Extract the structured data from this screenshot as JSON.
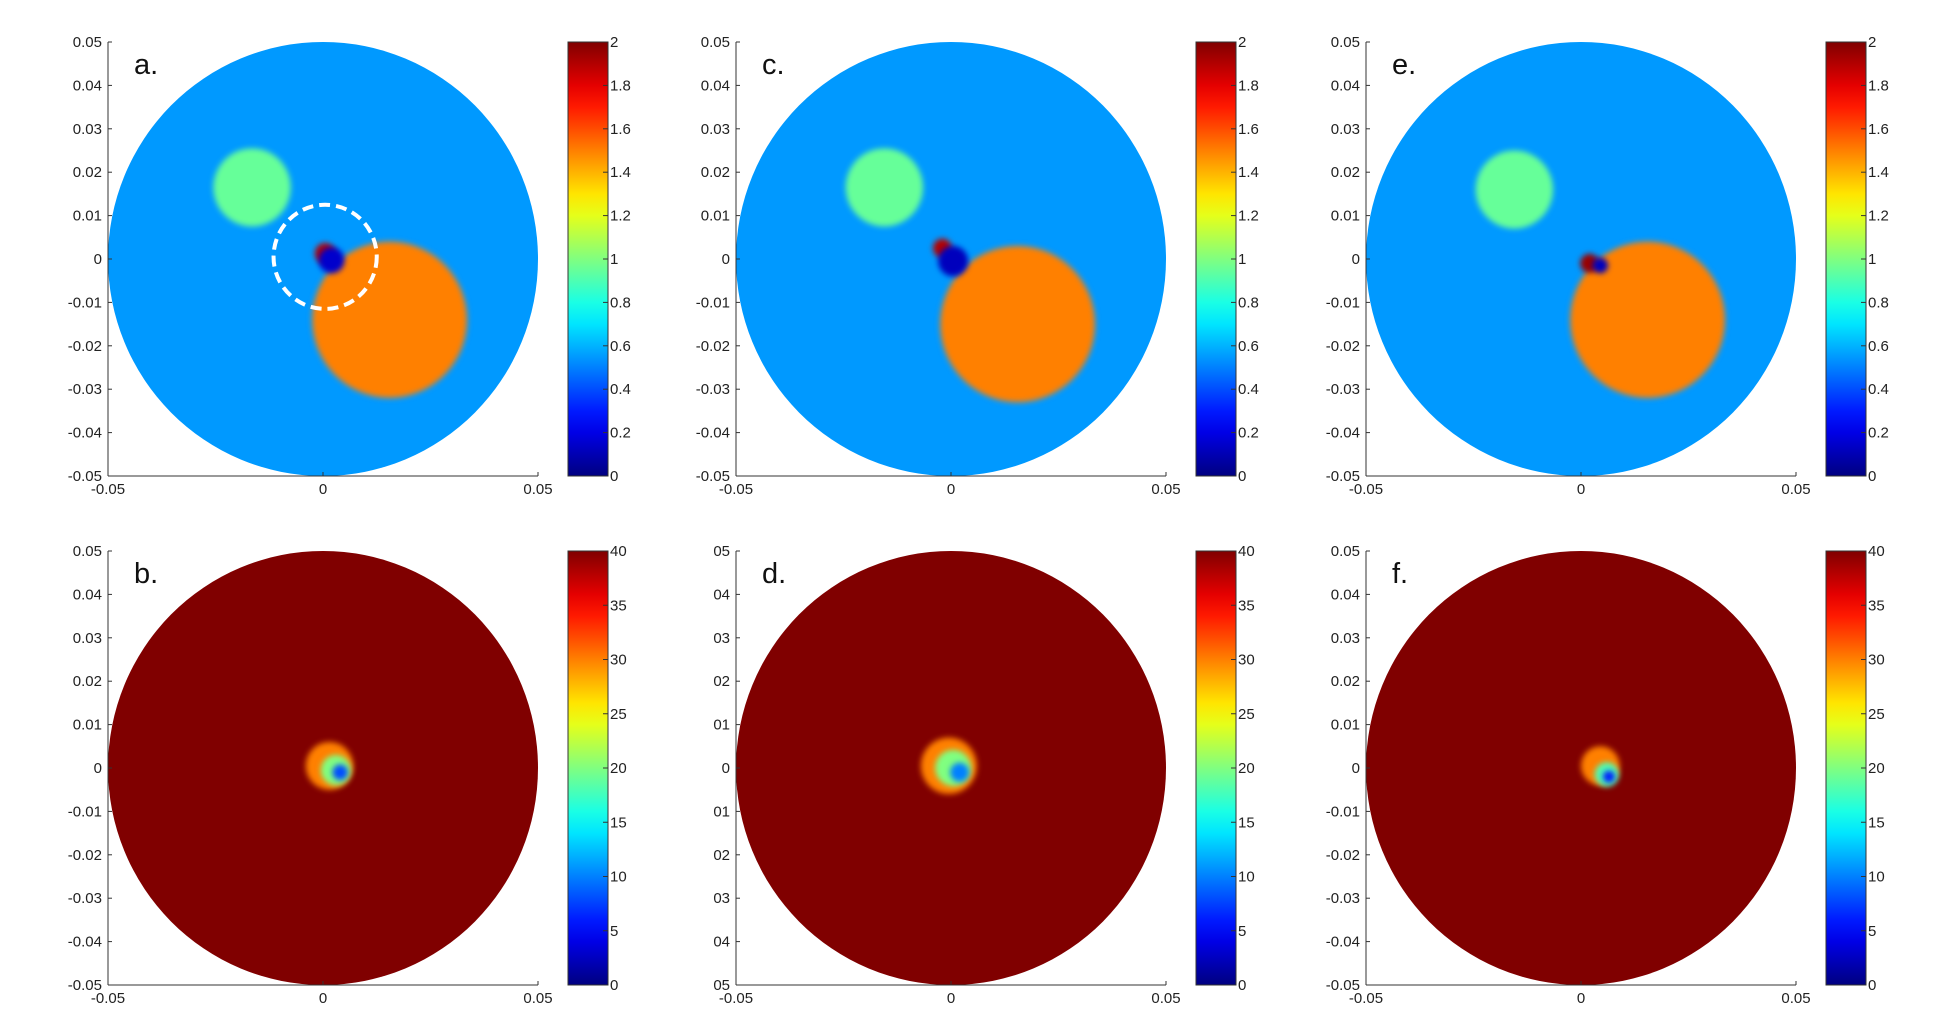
{
  "figure": {
    "description_domain": "six-panel image reconstructions with colorbars",
    "colormap": "jet",
    "background_color": "#ffffff"
  },
  "chart_data": [
    {
      "type": "heatmap",
      "id": "a",
      "panel_label": "a.",
      "xlim": [
        -0.05,
        0.05
      ],
      "ylim": [
        -0.05,
        0.05
      ],
      "xticks": [
        "-0.05",
        "0",
        "0.05"
      ],
      "yticks": [
        "0.05",
        "0.04",
        "0.03",
        "0.02",
        "0.01",
        "0",
        "-0.01",
        "-0.02",
        "-0.03",
        "-0.04",
        "-0.05"
      ],
      "colorbar": {
        "min": 0,
        "max": 2,
        "ticks": [
          "2",
          "1.8",
          "1.6",
          "1.4",
          "1.2",
          "1",
          "0.8",
          "0.6",
          "0.4",
          "0.2",
          "0"
        ]
      },
      "domain": {
        "shape": "circle",
        "center": [
          0,
          0
        ],
        "radius": 0.05,
        "value": 0.55
      },
      "inclusions": [
        {
          "name": "small-inclusion",
          "center": [
            -0.0165,
            0.0165
          ],
          "radius": 0.009,
          "value": 0.95
        },
        {
          "name": "large-inclusion",
          "center": [
            0.0155,
            -0.014
          ],
          "radius": 0.018,
          "value": 1.5
        },
        {
          "name": "hot-artifact",
          "center": [
            0.0005,
            0.0013
          ],
          "radius": 0.0024,
          "value": 1.9
        },
        {
          "name": "cold-artifact",
          "center": [
            0.002,
            -0.0003
          ],
          "radius": 0.003,
          "value": 0.15
        }
      ],
      "annotation": {
        "type": "dashed-circle",
        "center": [
          0.0005,
          0.0005
        ],
        "radius": 0.012,
        "color": "#ffffff"
      }
    },
    {
      "type": "heatmap",
      "id": "b",
      "panel_label": "b.",
      "xlim": [
        -0.05,
        0.05
      ],
      "ylim": [
        -0.05,
        0.05
      ],
      "xticks": [
        "-0.05",
        "0",
        "0.05"
      ],
      "yticks": [
        "0.05",
        "0.04",
        "0.03",
        "0.02",
        "0.01",
        "0",
        "-0.01",
        "-0.02",
        "-0.03",
        "-0.04",
        "-0.05"
      ],
      "colorbar": {
        "min": 0,
        "max": 40,
        "ticks": [
          "40",
          "35",
          "30",
          "25",
          "20",
          "15",
          "10",
          "5",
          "0"
        ]
      },
      "domain": {
        "shape": "circle",
        "center": [
          0,
          0
        ],
        "radius": 0.05,
        "value": 40
      },
      "inclusions": [
        {
          "name": "blob-outer",
          "center": [
            0.0015,
            0.0005
          ],
          "radius": 0.0055,
          "value": 30
        },
        {
          "name": "blob-mid",
          "center": [
            0.003,
            -0.0005
          ],
          "radius": 0.0035,
          "value": 20
        },
        {
          "name": "blob-core",
          "center": [
            0.004,
            -0.001
          ],
          "radius": 0.0018,
          "value": 8
        }
      ]
    },
    {
      "type": "heatmap",
      "id": "c",
      "panel_label": "c.",
      "xlim": [
        -0.05,
        0.05
      ],
      "ylim": [
        -0.05,
        0.05
      ],
      "xticks": [
        "-0.05",
        "0",
        "0.05"
      ],
      "yticks": [
        "0.05",
        "0.04",
        "0.03",
        "0.02",
        "0.01",
        "0",
        "-0.01",
        "-0.02",
        "-0.03",
        "-0.04",
        "-0.05"
      ],
      "colorbar": {
        "min": 0,
        "max": 2,
        "ticks": [
          "2",
          "1.8",
          "1.6",
          "1.4",
          "1.2",
          "1",
          "0.8",
          "0.6",
          "0.4",
          "0.2",
          "0"
        ]
      },
      "domain": {
        "shape": "circle",
        "center": [
          0,
          0
        ],
        "radius": 0.05,
        "value": 0.55
      },
      "inclusions": [
        {
          "name": "small-inclusion",
          "center": [
            -0.0155,
            0.0165
          ],
          "radius": 0.009,
          "value": 0.95
        },
        {
          "name": "large-inclusion",
          "center": [
            0.0155,
            -0.015
          ],
          "radius": 0.018,
          "value": 1.5
        },
        {
          "name": "hot-artifact",
          "center": [
            -0.002,
            0.0025
          ],
          "radius": 0.0022,
          "value": 1.9
        },
        {
          "name": "cold-artifact",
          "center": [
            0.0005,
            -0.0005
          ],
          "radius": 0.0035,
          "value": 0.12
        }
      ]
    },
    {
      "type": "heatmap",
      "id": "d",
      "panel_label": "d.",
      "xlim": [
        -0.05,
        0.05
      ],
      "ylim": [
        -0.05,
        0.05
      ],
      "xticks": [
        "-0.05",
        "0",
        "0.05"
      ],
      "yticks": [
        "05",
        "04",
        "03",
        "02",
        "01",
        "0",
        "01",
        "02",
        "03",
        "04",
        "05"
      ],
      "colorbar": {
        "min": 0,
        "max": 40,
        "ticks": [
          "40",
          "35",
          "30",
          "25",
          "20",
          "15",
          "10",
          "5",
          "0"
        ]
      },
      "domain": {
        "shape": "circle",
        "center": [
          0,
          0
        ],
        "radius": 0.05,
        "value": 40
      },
      "inclusions": [
        {
          "name": "blob-outer",
          "center": [
            -0.0005,
            0.0005
          ],
          "radius": 0.0065,
          "value": 30
        },
        {
          "name": "blob-mid",
          "center": [
            0.0005,
            0.0
          ],
          "radius": 0.0042,
          "value": 20
        },
        {
          "name": "blob-core",
          "center": [
            0.002,
            -0.001
          ],
          "radius": 0.0022,
          "value": 10
        }
      ]
    },
    {
      "type": "heatmap",
      "id": "e",
      "panel_label": "e.",
      "xlim": [
        -0.05,
        0.05
      ],
      "ylim": [
        -0.05,
        0.05
      ],
      "xticks": [
        "-0.05",
        "0",
        "0.05"
      ],
      "yticks": [
        "0.05",
        "0.04",
        "0.03",
        "0.02",
        "0.01",
        "0",
        "-0.01",
        "-0.02",
        "-0.03",
        "-0.04",
        "-0.05"
      ],
      "colorbar": {
        "min": 0,
        "max": 2,
        "ticks": [
          "2",
          "1.8",
          "1.6",
          "1.4",
          "1.2",
          "1",
          "0.8",
          "0.6",
          "0.4",
          "0.2",
          "0"
        ]
      },
      "domain": {
        "shape": "circle",
        "center": [
          0,
          0
        ],
        "radius": 0.05,
        "value": 0.55
      },
      "inclusions": [
        {
          "name": "small-inclusion",
          "center": [
            -0.0155,
            0.016
          ],
          "radius": 0.009,
          "value": 0.95
        },
        {
          "name": "large-inclusion",
          "center": [
            0.0155,
            -0.014
          ],
          "radius": 0.018,
          "value": 1.5
        },
        {
          "name": "hot-artifact",
          "center": [
            0.002,
            -0.001
          ],
          "radius": 0.0022,
          "value": 1.95
        },
        {
          "name": "cold-artifact",
          "center": [
            0.0045,
            -0.0015
          ],
          "radius": 0.0018,
          "value": 0.12
        }
      ]
    },
    {
      "type": "heatmap",
      "id": "f",
      "panel_label": "f.",
      "xlim": [
        -0.05,
        0.05
      ],
      "ylim": [
        -0.05,
        0.05
      ],
      "xticks": [
        "-0.05",
        "0",
        "0.05"
      ],
      "yticks": [
        "0.05",
        "0.04",
        "0.03",
        "0.02",
        "0.01",
        "0",
        "-0.01",
        "-0.02",
        "-0.03",
        "-0.04",
        "-0.05"
      ],
      "colorbar": {
        "min": 0,
        "max": 40,
        "ticks": [
          "40",
          "35",
          "30",
          "25",
          "20",
          "15",
          "10",
          "5",
          "0"
        ]
      },
      "domain": {
        "shape": "circle",
        "center": [
          0,
          0
        ],
        "radius": 0.05,
        "value": 40
      },
      "inclusions": [
        {
          "name": "blob-outer",
          "center": [
            0.0045,
            0.0005
          ],
          "radius": 0.0045,
          "value": 30
        },
        {
          "name": "blob-mid",
          "center": [
            0.006,
            -0.0015
          ],
          "radius": 0.0028,
          "value": 18
        },
        {
          "name": "blob-core",
          "center": [
            0.0065,
            -0.002
          ],
          "radius": 0.0014,
          "value": 6
        }
      ]
    }
  ]
}
